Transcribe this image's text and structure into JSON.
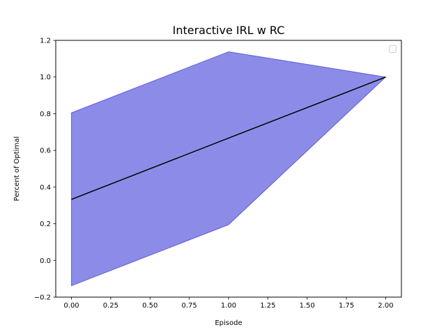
{
  "chart_data": {
    "type": "line",
    "title": "Interactive IRL w RC",
    "xlabel": "Episode",
    "ylabel": "Percent of Optimal",
    "xlim": [
      -0.1,
      2.1
    ],
    "ylim": [
      -0.2,
      1.2
    ],
    "grid": false,
    "legend": {
      "placement": "top-right",
      "entries": []
    },
    "x_ticks": [
      0.0,
      0.25,
      0.5,
      0.75,
      1.0,
      1.25,
      1.5,
      1.75,
      2.0
    ],
    "x_tick_labels": [
      "0.00",
      "0.25",
      "0.50",
      "0.75",
      "1.00",
      "1.25",
      "1.50",
      "1.75",
      "2.00"
    ],
    "y_ticks": [
      -0.2,
      0.0,
      0.2,
      0.4,
      0.6,
      0.8,
      1.0,
      1.2
    ],
    "y_tick_labels": [
      "−0.2",
      "0.0",
      "0.2",
      "0.4",
      "0.6",
      "0.8",
      "1.0",
      "1.2"
    ],
    "series": [
      {
        "x": [
          0,
          1,
          2
        ],
        "values": [
          0.333,
          0.667,
          1.0
        ],
        "lower": [
          -0.138,
          0.195,
          1.0
        ],
        "upper": [
          0.805,
          1.138,
          1.0
        ],
        "color": "#000000",
        "band_color": "#0000cc"
      }
    ]
  }
}
